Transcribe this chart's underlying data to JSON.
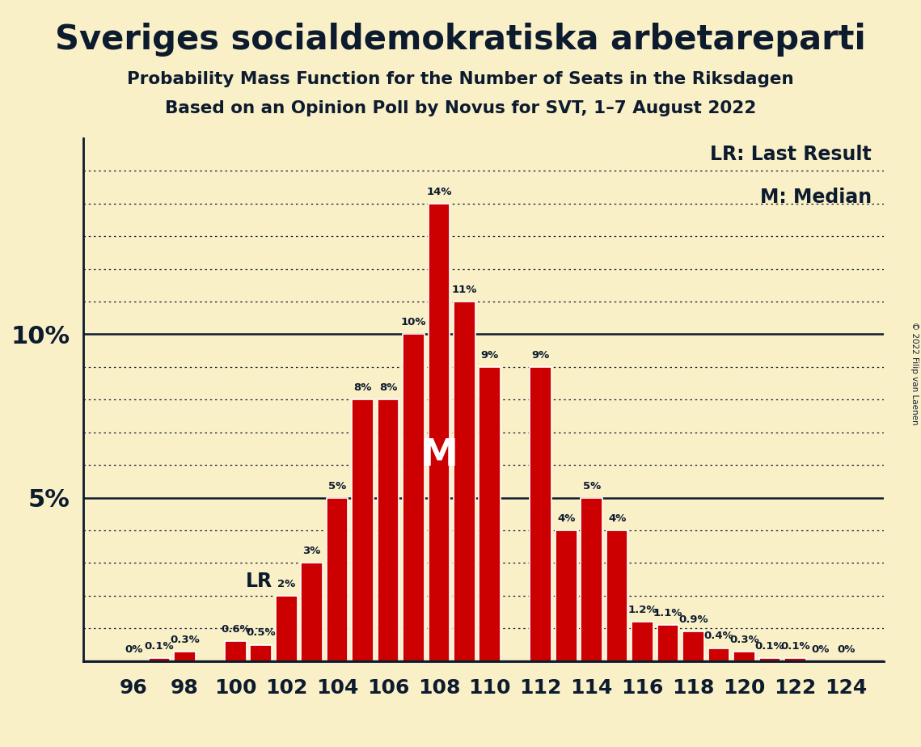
{
  "title1": "Sveriges socialdemokratiska arbetareparti",
  "title2": "Probability Mass Function for the Number of Seats in the Riksdagen",
  "title3": "Based on an Opinion Poll by Novus for SVT, 1–7 August 2022",
  "copyright": "© 2022 Filip van Laenen",
  "seats": [
    96,
    97,
    98,
    99,
    100,
    101,
    102,
    103,
    104,
    105,
    106,
    107,
    108,
    109,
    110,
    111,
    112,
    113,
    114,
    115,
    116,
    117,
    118,
    119,
    120,
    121,
    122,
    123,
    124
  ],
  "values": [
    0.0,
    0.1,
    0.3,
    0.0,
    0.6,
    0.5,
    2.0,
    3.0,
    5.0,
    8.0,
    8.0,
    10.0,
    14.0,
    11.0,
    9.0,
    0.0,
    9.0,
    4.0,
    5.0,
    4.0,
    1.2,
    1.1,
    0.9,
    0.4,
    0.3,
    0.1,
    0.1,
    0.0,
    0.0
  ],
  "labels": [
    "0%",
    "0.1%",
    "0.3%",
    "",
    "0.6%",
    "0.5%",
    "2%",
    "3%",
    "5%",
    "8%",
    "8%",
    "10%",
    "14%",
    "11%",
    "9%",
    "",
    "9%",
    "4%",
    "5%",
    "4%",
    "1.2%",
    "1.1%",
    "0.9%",
    "0.4%",
    "0.3%",
    "0.1%",
    "0.1%",
    "0%",
    "0%"
  ],
  "bar_color": "#CC0000",
  "bg_color": "#FAF0C8",
  "text_color": "#0d1b2e",
  "LR_seat": 102,
  "median_seat": 108,
  "xtick_seats": [
    96,
    98,
    100,
    102,
    104,
    106,
    108,
    110,
    112,
    114,
    116,
    118,
    120,
    122,
    124
  ],
  "legend_lr": "LR: Last Result",
  "legend_m": "M: Median",
  "ylim": [
    0,
    16
  ],
  "solid_grid": [
    5,
    10
  ],
  "dotted_grid": [
    1,
    2,
    3,
    4,
    6,
    7,
    8,
    9,
    11,
    12,
    13,
    14,
    15
  ]
}
